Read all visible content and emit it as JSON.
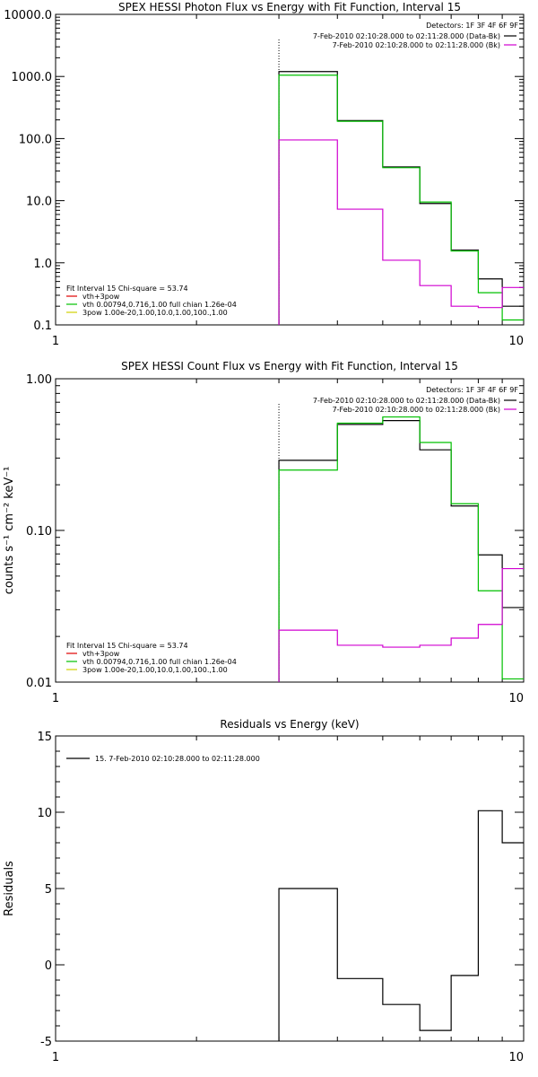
{
  "colors": {
    "data_minus_bk": "#000000",
    "bk": "#d000d0",
    "fit": "#00c000",
    "vth3pow": "#e00000",
    "pow3": "#d0d000"
  },
  "chart_data": [
    {
      "type": "line",
      "title": "SPEX HESSI Photon Flux vs Energy with Fit Function, Interval 15",
      "xlabel": "",
      "ylabel": "",
      "xscale": "log",
      "yscale": "log",
      "xlim": [
        1,
        10
      ],
      "ylim": [
        0.1,
        10000
      ],
      "xticks": [
        {
          "v": 1,
          "label": "1"
        },
        {
          "v": 10,
          "label": "10"
        }
      ],
      "yticks": [
        {
          "v": 10000,
          "label": "10000.0"
        },
        {
          "v": 1000,
          "label": "1000.0"
        },
        {
          "v": 100,
          "label": "100.0"
        },
        {
          "v": 10,
          "label": "10.0"
        },
        {
          "v": 1,
          "label": "1.0"
        },
        {
          "v": 0.1,
          "label": "0.1"
        }
      ],
      "vline": 3,
      "detectors": "Detectors: 1F 3F 4F 6F 9F",
      "legend_right": [
        {
          "text": "7-Feb-2010 02:10:28.000 to 02:11:28.000 (Data-Bk)",
          "color": "#000000"
        },
        {
          "text": "7-Feb-2010 02:10:28.000 to 02:11:28.000 (Bk)",
          "color": "#d000d0"
        }
      ],
      "legend_left": [
        {
          "text": "Fit Interval 15    Chi-square = 53.74",
          "color": ""
        },
        {
          "text": "vth+3pow",
          "color": "#e00000"
        },
        {
          "text": "vth 0.00794,0.716,1.00  full chian 1.26e-04",
          "color": "#00c000"
        },
        {
          "text": "3pow 1.00e-20,1.00,10.0,1.00,100.,1.00",
          "color": "#d0d000"
        }
      ],
      "bin_edges": [
        3,
        4,
        5,
        6,
        7,
        8,
        9,
        10
      ],
      "series": [
        {
          "name": "Data-Bk",
          "color": "#000000",
          "values": [
            1200,
            195,
            35,
            9,
            1.6,
            0.55,
            0.2
          ]
        },
        {
          "name": "Fit",
          "color": "#00c000",
          "values": [
            1050,
            190,
            34,
            9.5,
            1.55,
            0.33,
            0.12
          ]
        },
        {
          "name": "Bk",
          "color": "#d000d0",
          "values": [
            95,
            7.3,
            1.1,
            0.43,
            0.2,
            0.19,
            0.4
          ]
        }
      ]
    },
    {
      "type": "line",
      "title": "SPEX HESSI Count Flux vs Energy with Fit Function, Interval 15",
      "xlabel": "",
      "ylabel": "counts s⁻¹ cm⁻² keV⁻¹",
      "xscale": "log",
      "yscale": "log",
      "xlim": [
        1,
        10
      ],
      "ylim": [
        0.01,
        1
      ],
      "xticks": [
        {
          "v": 1,
          "label": "1"
        },
        {
          "v": 10,
          "label": "10"
        }
      ],
      "yticks": [
        {
          "v": 1,
          "label": "1.00"
        },
        {
          "v": 0.1,
          "label": "0.10"
        },
        {
          "v": 0.01,
          "label": "0.01"
        }
      ],
      "vline": 3,
      "detectors": "Detectors: 1F 3F 4F 6F 9F",
      "legend_right": [
        {
          "text": "7-Feb-2010 02:10:28.000 to 02:11:28.000 (Data-Bk)",
          "color": "#000000"
        },
        {
          "text": "7-Feb-2010 02:10:28.000 to 02:11:28.000 (Bk)",
          "color": "#d000d0"
        }
      ],
      "legend_left": [
        {
          "text": "Fit Interval 15    Chi-square = 53.74",
          "color": ""
        },
        {
          "text": "vth+3pow",
          "color": "#e00000"
        },
        {
          "text": "vth 0.00794,0.716,1.00  full chian 1.26e-04",
          "color": "#00c000"
        },
        {
          "text": "3pow 1.00e-20,1.00,10.0,1.00,100.,1.00",
          "color": "#d0d000"
        }
      ],
      "bin_edges": [
        3,
        4,
        5,
        6,
        7,
        8,
        9,
        10
      ],
      "series": [
        {
          "name": "Data-Bk",
          "color": "#000000",
          "values": [
            0.29,
            0.5,
            0.53,
            0.34,
            0.145,
            0.069,
            0.031
          ]
        },
        {
          "name": "Fit",
          "color": "#00c000",
          "values": [
            0.25,
            0.51,
            0.56,
            0.38,
            0.15,
            0.04,
            0.0105
          ]
        },
        {
          "name": "Bk",
          "color": "#d000d0",
          "values": [
            0.022,
            0.0175,
            0.017,
            0.0175,
            0.0195,
            0.024,
            0.056
          ]
        }
      ]
    },
    {
      "type": "line",
      "title": "Residuals vs Energy (keV)",
      "xlabel": "",
      "ylabel": "Residuals",
      "xscale": "log",
      "yscale": "linear",
      "xlim": [
        1,
        10
      ],
      "ylim": [
        -5,
        15
      ],
      "xticks": [
        {
          "v": 1,
          "label": "1"
        },
        {
          "v": 10,
          "label": "10"
        }
      ],
      "yticks": [
        {
          "v": 15,
          "label": "15"
        },
        {
          "v": 10,
          "label": "10"
        },
        {
          "v": 5,
          "label": "5"
        },
        {
          "v": 0,
          "label": "0"
        },
        {
          "v": -5,
          "label": "-5"
        }
      ],
      "legend_left": [
        {
          "text": "15.  7-Feb-2010 02:10:28.000 to 02:11:28.000",
          "color": "#000000"
        }
      ],
      "bin_edges": [
        3,
        4,
        5,
        6,
        7,
        8,
        9,
        10
      ],
      "series": [
        {
          "name": "15",
          "color": "#000000",
          "values": [
            5.0,
            -0.9,
            -2.6,
            -4.3,
            -0.7,
            10.1,
            8.0
          ]
        }
      ]
    }
  ]
}
